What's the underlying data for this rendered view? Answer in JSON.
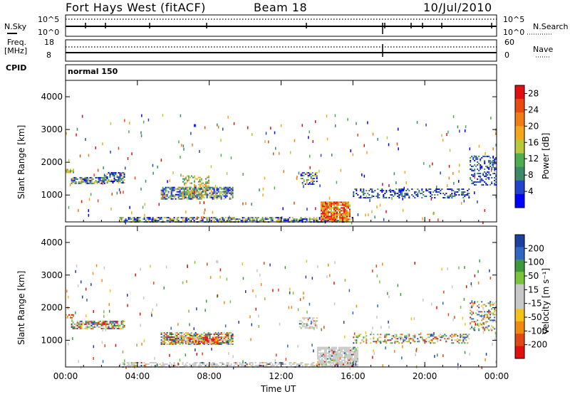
{
  "header": {
    "station": "Fort Hays West (fitACF)",
    "beam": "Beam 18",
    "date": "10/Jul/2010"
  },
  "status_panels": {
    "nsky_label": "N.Sky",
    "nsearch_label": "N.Search",
    "noise_top": "10^5",
    "noise_bottom": "10^0",
    "freq_label": "Freq.",
    "freq_unit": "[MHz]",
    "freq_top": "18",
    "freq_bottom": "8",
    "nave_label": "Nave",
    "nave_top": "60",
    "nave_bottom": "0",
    "cpid_label": "CPID",
    "cpid_value": "normal 150"
  },
  "colors": {
    "frame": "#000000",
    "power_scale": [
      "#0000ff",
      "#2244cc",
      "#3d8a6a",
      "#4fae4f",
      "#b9c93a",
      "#f3a81b",
      "#f07d16",
      "#e84a10",
      "#e01010"
    ],
    "velocity_scale": [
      "#1c3fa0",
      "#2e68c2",
      "#3c9a3c",
      "#79c43c",
      "#c8c8c8",
      "#c8c8c8",
      "#f2c21a",
      "#f08a12",
      "#e04818",
      "#e01010"
    ]
  },
  "chart_data": [
    {
      "type": "heatmap",
      "title": "Power",
      "xlabel": "",
      "ylabel": "Slant Range [km]",
      "x_ticks": [
        "00:00",
        "04:00",
        "08:00",
        "12:00",
        "16:00",
        "20:00",
        "00:00"
      ],
      "y_ticks": [
        "1000",
        "2000",
        "3000",
        "4000"
      ],
      "xlim_hours": [
        0,
        24
      ],
      "ylim_km": [
        180,
        4500
      ],
      "colorbar": {
        "label": "Power [dB]",
        "ticks": [
          "4",
          "8",
          "12",
          "16",
          "20",
          "24",
          "28"
        ],
        "range": [
          0,
          30
        ]
      },
      "regions": [
        {
          "t0": 0.0,
          "t1": 0.4,
          "r0": 1700,
          "r1": 1800,
          "level": "high",
          "density": 0.6
        },
        {
          "t0": 0.3,
          "t1": 2.2,
          "r0": 1350,
          "r1": 1550,
          "level": "mid",
          "density": 0.7
        },
        {
          "t0": 2.2,
          "t1": 3.3,
          "r0": 1380,
          "r1": 1700,
          "level": "mid",
          "density": 0.6
        },
        {
          "t0": 5.3,
          "t1": 9.3,
          "r0": 900,
          "r1": 1250,
          "level": "mid",
          "density": 0.7
        },
        {
          "t0": 6.5,
          "t1": 8.0,
          "r0": 950,
          "r1": 1600,
          "level": "high",
          "density": 0.4
        },
        {
          "t0": 3.0,
          "t1": 16.0,
          "r0": 180,
          "r1": 330,
          "level": "mid",
          "density": 0.6
        },
        {
          "t0": 13.0,
          "t1": 14.0,
          "r0": 1350,
          "r1": 1700,
          "level": "mid",
          "density": 0.5
        },
        {
          "t0": 14.2,
          "t1": 15.8,
          "r0": 200,
          "r1": 800,
          "level": "peak",
          "density": 0.85
        },
        {
          "t0": 16.0,
          "t1": 22.5,
          "r0": 900,
          "r1": 1200,
          "level": "low",
          "density": 0.35
        },
        {
          "t0": 22.5,
          "t1": 24.0,
          "r0": 1300,
          "r1": 2200,
          "level": "low",
          "density": 0.35
        }
      ]
    },
    {
      "type": "heatmap",
      "title": "Velocity",
      "xlabel": "Time UT",
      "ylabel": "Slant Range [km]",
      "x_ticks": [
        "00:00",
        "04:00",
        "08:00",
        "12:00",
        "16:00",
        "20:00",
        "00:00"
      ],
      "y_ticks": [
        "1000",
        "2000",
        "3000",
        "4000"
      ],
      "xlim_hours": [
        0,
        24
      ],
      "ylim_km": [
        180,
        4500
      ],
      "colorbar": {
        "label": "Velocity [m s⁻¹]",
        "ticks": [
          "200",
          "100",
          "50",
          "15",
          "-15",
          "-50",
          "-100",
          "-200"
        ],
        "range": [
          -250,
          250
        ]
      },
      "regions": [
        {
          "t0": 0.0,
          "t1": 0.4,
          "r0": 1700,
          "r1": 1800,
          "level": "neg",
          "density": 0.6
        },
        {
          "t0": 0.3,
          "t1": 3.3,
          "r0": 1350,
          "r1": 1600,
          "level": "mix",
          "density": 0.7
        },
        {
          "t0": 5.3,
          "t1": 9.3,
          "r0": 900,
          "r1": 1250,
          "level": "mix",
          "density": 0.7
        },
        {
          "t0": 6.5,
          "t1": 8.5,
          "r0": 900,
          "r1": 1100,
          "level": "neg",
          "density": 0.7
        },
        {
          "t0": 3.0,
          "t1": 16.0,
          "r0": 180,
          "r1": 330,
          "level": "gray",
          "density": 0.55
        },
        {
          "t0": 13.0,
          "t1": 14.0,
          "r0": 1350,
          "r1": 1700,
          "level": "gray",
          "density": 0.5
        },
        {
          "t0": 14.0,
          "t1": 16.3,
          "r0": 200,
          "r1": 800,
          "level": "gray",
          "density": 0.85
        },
        {
          "t0": 16.0,
          "t1": 22.5,
          "r0": 900,
          "r1": 1200,
          "level": "mix",
          "density": 0.35
        },
        {
          "t0": 22.5,
          "t1": 24.0,
          "r0": 1300,
          "r1": 2200,
          "level": "mix",
          "density": 0.35
        }
      ]
    }
  ]
}
